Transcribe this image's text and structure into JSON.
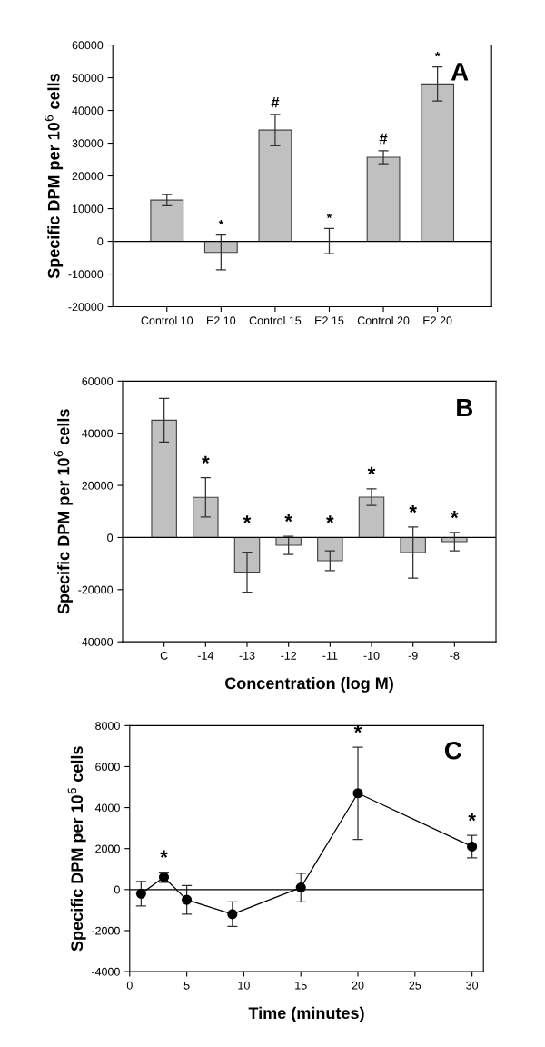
{
  "chart_data": [
    {
      "type": "bar",
      "ylabel": "Specific DPM per 10$^{6}$ cells",
      "categories": [
        "Control 10",
        "E2 10",
        "Control 15",
        "E2 15",
        "Control 20",
        "E2 20"
      ],
      "values": [
        12600,
        -3400,
        34000,
        0,
        25700,
        48100
      ],
      "errors": [
        1700,
        5300,
        4800,
        [
          -3800,
          3900
        ],
        2000,
        5200
      ],
      "color": "#c0c0c0",
      "ylim": [
        -20000,
        60000
      ],
      "yticks": [
        -20000,
        -10000,
        0,
        10000,
        20000,
        30000,
        40000,
        50000,
        60000
      ],
      "ref_lines": [
        {
          "axis": "y",
          "value": 0
        }
      ],
      "annotations": [
        "A",
        {
          "text": "*",
          "x": "E2 10",
          "y": 1900
        },
        {
          "text": "#",
          "x": "Control 15",
          "y": 38800
        },
        {
          "text": "*",
          "x": "E2 15",
          "y": 3900
        },
        {
          "text": "#",
          "x": "Control 20",
          "y": 27700
        },
        {
          "text": "*",
          "x": "E2 20",
          "y": 53300
        }
      ]
    },
    {
      "type": "bar",
      "ylabel": "Specific DPM per 10$^{6}$ cells",
      "xlabel": "Concentration (log M)",
      "categories": [
        "C",
        "-14",
        "-13",
        "-12",
        "-11",
        "-10",
        "-9",
        "-8"
      ],
      "values": [
        45000,
        15400,
        -13300,
        -3000,
        -8900,
        15500,
        -5800,
        -1600
      ],
      "errors": [
        8400,
        7500,
        7700,
        3500,
        3800,
        3200,
        9800,
        3500
      ],
      "color": "#c0c0c0",
      "ylim": [
        -40000,
        60000
      ],
      "yticks": [
        -40000,
        -20000,
        0,
        20000,
        40000,
        60000
      ],
      "ref_lines": [
        {
          "axis": "y",
          "value": 0
        }
      ],
      "annotations": [
        "B",
        {
          "text": "*",
          "x": "-14",
          "y": 22900
        },
        {
          "text": "*",
          "x": "-13",
          "y": 0
        },
        {
          "text": "*",
          "x": "-12",
          "y": 500
        },
        {
          "text": "*",
          "x": "-11",
          "y": 0
        },
        {
          "text": "*",
          "x": "-10",
          "y": 18700
        },
        {
          "text": "*",
          "x": "-9",
          "y": 4000
        },
        {
          "text": "*",
          "x": "-8",
          "y": 1900
        }
      ]
    },
    {
      "type": "line",
      "ylabel": "Specific DPM per 10$^{6}$ cells",
      "xlabel": "Time (minutes)",
      "x": [
        1,
        3,
        5,
        9,
        15,
        20,
        30
      ],
      "values": [
        -200,
        600,
        -500,
        -1200,
        100,
        4700,
        2100
      ],
      "errors": [
        600,
        250,
        700,
        600,
        700,
        2250,
        550
      ],
      "color": "#000000",
      "marker": "circle",
      "line_style": "solid",
      "xlim": [
        0,
        31
      ],
      "xticks": [
        0,
        5,
        10,
        15,
        20,
        25,
        30
      ],
      "ylim": [
        -4000,
        8000
      ],
      "yticks": [
        -4000,
        -2000,
        0,
        2000,
        4000,
        6000,
        8000
      ],
      "ref_lines": [
        {
          "axis": "y",
          "value": 0
        }
      ],
      "annotations": [
        "C",
        {
          "text": "*",
          "x": 3,
          "y": 850
        },
        {
          "text": "*",
          "x": 20,
          "y": 6950
        },
        {
          "text": "*",
          "x": 30,
          "y": 2650
        }
      ]
    }
  ]
}
